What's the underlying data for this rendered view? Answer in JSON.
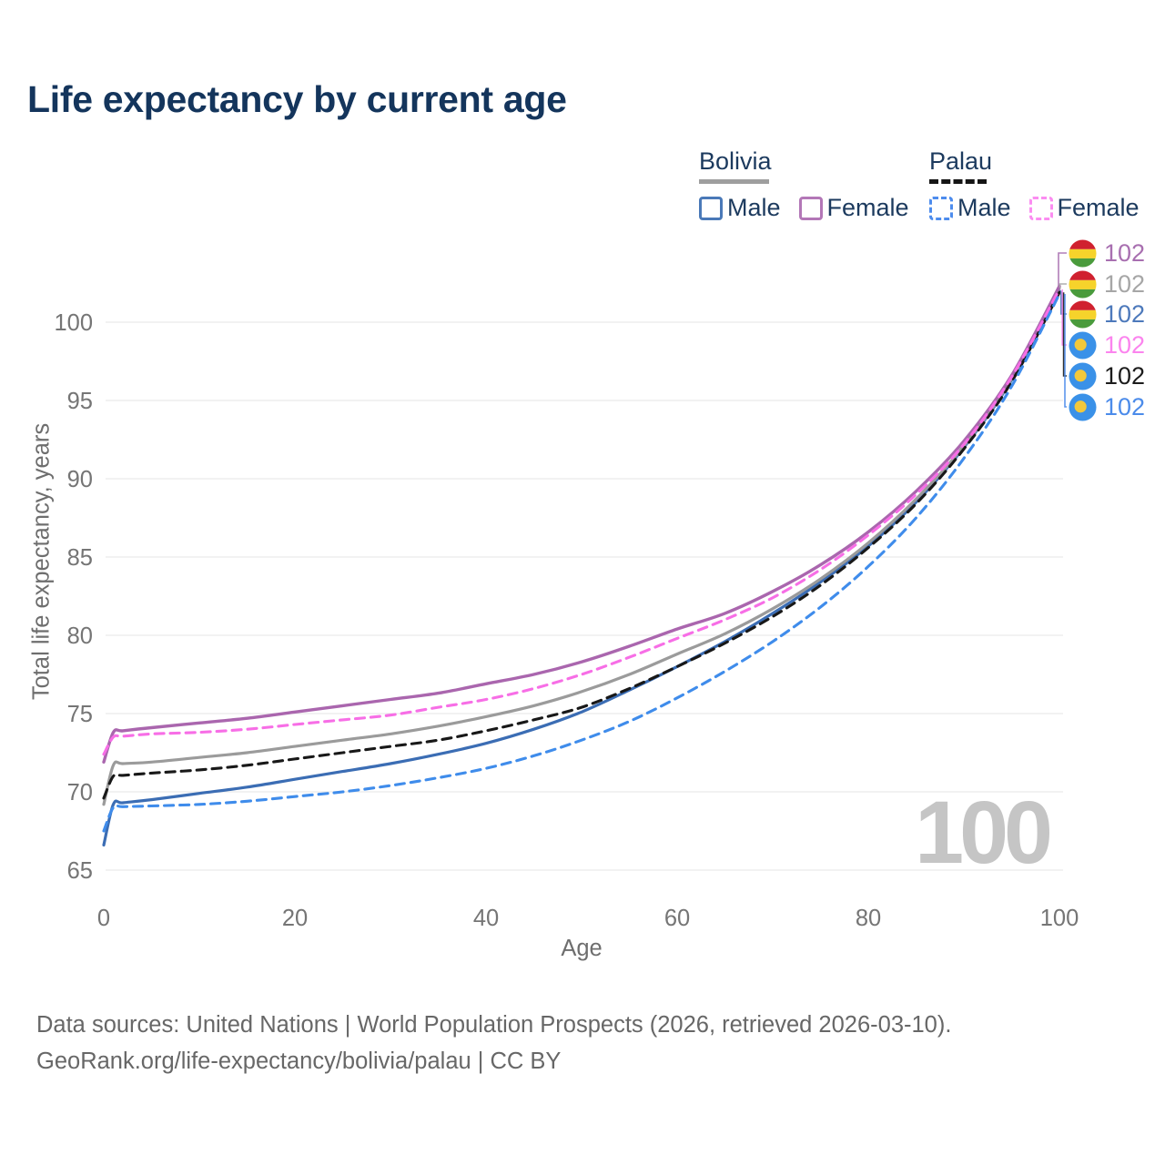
{
  "title": "Life expectancy by current age",
  "watermark": "100",
  "legend": {
    "groups": [
      {
        "name": "Bolivia",
        "line_style": "solid",
        "underline_color": "#9e9e9e",
        "items": [
          {
            "label": "Male",
            "color": "#4a79b8"
          },
          {
            "label": "Female",
            "color": "#b377b7"
          }
        ]
      },
      {
        "name": "Palau",
        "line_style": "dashed",
        "underline_color": "#151515",
        "items": [
          {
            "label": "Male",
            "color": "#4d8ced"
          },
          {
            "label": "Female",
            "color": "#fb8df1"
          }
        ]
      }
    ]
  },
  "end_labels": [
    {
      "country": "Bolivia",
      "series": "Female",
      "flag": "bolivia",
      "value": "102",
      "color": "#a86fb0"
    },
    {
      "country": "Bolivia",
      "series": "Both sexes",
      "flag": "bolivia",
      "value": "102",
      "color": "#a6a6a6"
    },
    {
      "country": "Bolivia",
      "series": "Male",
      "flag": "bolivia",
      "value": "102",
      "color": "#4d79bb"
    },
    {
      "country": "Palau",
      "series": "Female",
      "flag": "palau",
      "value": "102",
      "color": "#fb84ee"
    },
    {
      "country": "Palau",
      "series": "Both sexes",
      "flag": "palau",
      "value": "102",
      "color": "#1c1c1c"
    },
    {
      "country": "Palau",
      "series": "Male",
      "flag": "palau",
      "value": "102",
      "color": "#4b8bea"
    }
  ],
  "footer": {
    "line1": "Data sources: United Nations | World Population Prospects (2026, retrieved 2026-03-10).",
    "line2": "GeoRank.org/life-expectancy/bolivia/palau | CC BY"
  },
  "chart_data": {
    "type": "line",
    "title": "Life expectancy by current age",
    "xlabel": "Age",
    "ylabel": "Total life expectancy, years",
    "xlim": [
      0,
      100
    ],
    "ylim": [
      65,
      103
    ],
    "xticks": [
      0,
      20,
      40,
      60,
      80,
      100
    ],
    "yticks": [
      65,
      70,
      75,
      80,
      85,
      90,
      95,
      100
    ],
    "grid": true,
    "legend_position": "top-right",
    "x": [
      0,
      1,
      2,
      5,
      10,
      15,
      20,
      25,
      30,
      35,
      40,
      45,
      50,
      55,
      60,
      65,
      70,
      75,
      80,
      85,
      90,
      95,
      100
    ],
    "series": [
      {
        "id": "bolivia-female",
        "name": "Bolivia Female",
        "color": "#aa66ae",
        "dash": "solid",
        "width": 3.4,
        "values": [
          71.9,
          73.8,
          73.9,
          74.1,
          74.4,
          74.7,
          75.1,
          75.5,
          75.9,
          76.3,
          76.9,
          77.5,
          78.3,
          79.3,
          80.4,
          81.4,
          82.8,
          84.5,
          86.6,
          89.2,
          92.4,
          96.6,
          102.3
        ]
      },
      {
        "id": "bolivia-both-sexes",
        "name": "Bolivia Both sexes",
        "color": "#9b9b9b",
        "dash": "solid",
        "width": 3.2,
        "values": [
          69.2,
          71.7,
          71.8,
          71.9,
          72.2,
          72.5,
          72.9,
          73.3,
          73.7,
          74.2,
          74.8,
          75.5,
          76.4,
          77.5,
          78.8,
          80.1,
          81.7,
          83.6,
          85.9,
          88.7,
          92.1,
          96.4,
          102.2
        ]
      },
      {
        "id": "bolivia-male",
        "name": "Bolivia Male",
        "color": "#3b6db4",
        "dash": "solid",
        "width": 3.2,
        "values": [
          66.6,
          69.2,
          69.3,
          69.5,
          69.9,
          70.3,
          70.8,
          71.3,
          71.8,
          72.4,
          73.1,
          74.0,
          75.1,
          76.5,
          78.0,
          79.6,
          81.4,
          83.4,
          85.7,
          88.5,
          92.0,
          96.3,
          102.0
        ]
      },
      {
        "id": "palau-female",
        "name": "Palau Female",
        "color": "#f76ee6",
        "dash": "dashed",
        "width": 3.1,
        "values": [
          72.4,
          73.5,
          73.55,
          73.7,
          73.8,
          74.0,
          74.3,
          74.6,
          74.9,
          75.4,
          75.9,
          76.6,
          77.5,
          78.6,
          79.8,
          81.0,
          82.4,
          84.2,
          86.4,
          89.0,
          92.2,
          96.5,
          102.1
        ]
      },
      {
        "id": "palau-both-sexes",
        "name": "Palau Both sexes",
        "color": "#181818",
        "dash": "dashed",
        "width": 3.1,
        "values": [
          69.6,
          71.0,
          71.05,
          71.2,
          71.4,
          71.7,
          72.1,
          72.5,
          72.9,
          73.3,
          73.9,
          74.6,
          75.4,
          76.6,
          78.0,
          79.5,
          81.2,
          83.2,
          85.6,
          88.4,
          91.9,
          96.2,
          101.9
        ]
      },
      {
        "id": "palau-male",
        "name": "Palau Male",
        "color": "#3f8ceb",
        "dash": "dashed",
        "width": 3.1,
        "values": [
          67.5,
          69.0,
          69.05,
          69.1,
          69.2,
          69.4,
          69.7,
          70.0,
          70.4,
          70.9,
          71.5,
          72.3,
          73.3,
          74.5,
          76.0,
          77.7,
          79.6,
          81.8,
          84.4,
          87.5,
          91.3,
          95.9,
          101.8
        ]
      }
    ]
  }
}
